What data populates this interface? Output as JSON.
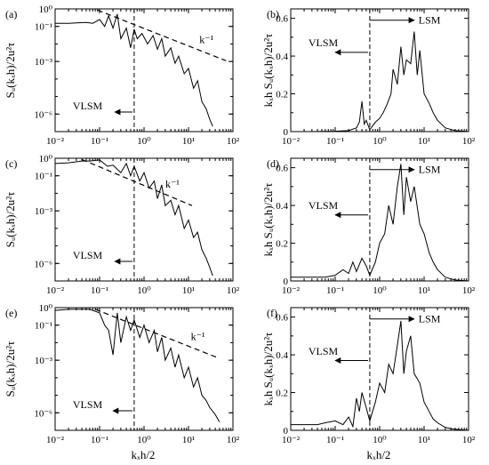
{
  "figure": {
    "xlabel": "kₓh/2"
  },
  "chart_data": [
    {
      "panel": "(a)",
      "type": "line",
      "xscale": "log",
      "yscale": "log",
      "xlim": [
        0.01,
        100
      ],
      "ylim": [
        1e-07,
        1
      ],
      "ylabel": "Sᵤ(kₓh)/2u²τ",
      "xticks": [
        "10⁻²",
        "10⁻¹",
        "10⁰",
        "10¹",
        "10²"
      ],
      "yticks": [
        "10⁰",
        "10⁻¹",
        "10⁻³",
        "10⁻⁶"
      ],
      "ytick_values": [
        1,
        0.1,
        0.001,
        1e-06
      ],
      "cutoff_x": 0.6,
      "reference_line": {
        "label": "k⁻¹",
        "x": [
          0.09,
          70
        ],
        "y": [
          0.85,
          0.0011
        ]
      },
      "annotations": [
        {
          "text": "VLSM",
          "x": 0.025,
          "y": 3e-06,
          "arrow_to_x": 0.22,
          "arrow_from_x": 0.55,
          "arrow_y": 1.3e-06
        }
      ],
      "series": [
        {
          "x": [
            0.01,
            0.02,
            0.03,
            0.05,
            0.07,
            0.1,
            0.13,
            0.16,
            0.2,
            0.25,
            0.3,
            0.4,
            0.5,
            0.6,
            0.7,
            0.9,
            1.2,
            1.6,
            2,
            2.5,
            3,
            4,
            5,
            6,
            8,
            10,
            13,
            16,
            20,
            25,
            30,
            35
          ],
          "y": [
            0.15,
            0.15,
            0.16,
            0.17,
            0.15,
            0.25,
            0.1,
            0.4,
            0.08,
            0.5,
            0.02,
            0.08,
            0.006,
            0.07,
            0.02,
            0.04,
            0.01,
            0.03,
            0.005,
            0.02,
            0.002,
            0.006,
            0.0008,
            0.002,
            0.0002,
            0.0004,
            3e-05,
            8e-05,
            5e-06,
            2e-06,
            5e-07,
            2e-07
          ]
        }
      ]
    },
    {
      "panel": "(b)",
      "type": "line",
      "xscale": "log",
      "yscale": "linear",
      "xlim": [
        0.01,
        100
      ],
      "ylim": [
        0,
        0.65
      ],
      "ylabel": "kₓh Sᵤ(kₓh)/2u²τ",
      "xticks": [
        "10⁻²",
        "10⁻¹",
        "10⁰",
        "10¹",
        "10²"
      ],
      "yticks": [
        "0",
        "0.2",
        "0.4",
        "0.6"
      ],
      "ytick_values": [
        0,
        0.2,
        0.4,
        0.6
      ],
      "cutoff_x": 0.6,
      "annotations": [
        {
          "text": "LSM",
          "x": 7.5,
          "y": 0.59,
          "arrow_from_x": 0.6,
          "arrow_to_x": 6.0,
          "arrow_y": 0.59
        },
        {
          "text": "VLSM",
          "x": 0.025,
          "y": 0.47,
          "arrow_from_x": 0.55,
          "arrow_to_x": 0.1,
          "arrow_y": 0.42
        }
      ],
      "series": [
        {
          "x": [
            0.01,
            0.03,
            0.06,
            0.1,
            0.2,
            0.3,
            0.35,
            0.4,
            0.45,
            0.5,
            0.6,
            0.8,
            1,
            1.2,
            1.5,
            1.8,
            2,
            2.5,
            3,
            3.5,
            4,
            5,
            6,
            7,
            8,
            10,
            13,
            16,
            20,
            30,
            50,
            100
          ],
          "y": [
            0.0,
            0.0,
            0.001,
            0.002,
            0.005,
            0.02,
            0.05,
            0.16,
            0.04,
            0.06,
            0.01,
            0.05,
            0.07,
            0.1,
            0.15,
            0.2,
            0.33,
            0.25,
            0.45,
            0.3,
            0.38,
            0.36,
            0.53,
            0.3,
            0.43,
            0.2,
            0.15,
            0.1,
            0.06,
            0.02,
            0.005,
            0.0
          ]
        }
      ]
    },
    {
      "panel": "(c)",
      "type": "line",
      "xscale": "log",
      "yscale": "log",
      "xlim": [
        0.01,
        100
      ],
      "ylim": [
        1e-07,
        1
      ],
      "ylabel": "Sᵤ(kₓh)/2u²τ",
      "xticks": [
        "10⁻²",
        "10⁻¹",
        "10⁰",
        "10¹",
        "10²"
      ],
      "yticks": [
        "10⁰",
        "10⁻¹",
        "10⁻³",
        "10⁻⁶"
      ],
      "ytick_values": [
        1,
        0.1,
        0.001,
        1e-06
      ],
      "cutoff_x": 0.6,
      "reference_line": {
        "label": "k⁻¹",
        "x": [
          0.04,
          12
        ],
        "y": [
          0.85,
          0.002
        ]
      },
      "annotations": [
        {
          "text": "VLSM",
          "x": 0.025,
          "y": 3e-06,
          "arrow_to_x": 0.22,
          "arrow_from_x": 0.55,
          "arrow_y": 1.3e-06
        }
      ],
      "series": [
        {
          "x": [
            0.01,
            0.02,
            0.04,
            0.06,
            0.1,
            0.15,
            0.2,
            0.3,
            0.4,
            0.5,
            0.6,
            0.8,
            1,
            1.3,
            1.7,
            2,
            2.5,
            3,
            4,
            5,
            6,
            8,
            10,
            13,
            16,
            20,
            25,
            30,
            35
          ],
          "y": [
            0.5,
            0.55,
            0.7,
            0.7,
            0.8,
            0.35,
            0.4,
            0.15,
            0.5,
            0.1,
            0.35,
            0.05,
            0.15,
            0.02,
            0.05,
            0.005,
            0.03,
            0.002,
            0.004,
            0.0006,
            0.002,
            0.0001,
            0.0003,
            3e-05,
            6e-05,
            6e-06,
            2e-06,
            6e-07,
            2e-07
          ]
        }
      ]
    },
    {
      "panel": "(d)",
      "type": "line",
      "xscale": "log",
      "yscale": "linear",
      "xlim": [
        0.01,
        100
      ],
      "ylim": [
        0,
        0.65
      ],
      "ylabel": "kₓh Sᵤ(kₓh)/2u²τ",
      "xticks": [
        "10⁻²",
        "10⁻¹",
        "10⁰",
        "10¹",
        "10²"
      ],
      "yticks": [
        "0",
        "0.2",
        "0.4",
        "0.6"
      ],
      "ytick_values": [
        0,
        0.2,
        0.4,
        0.6
      ],
      "cutoff_x": 0.6,
      "annotations": [
        {
          "text": "LSM",
          "x": 7.5,
          "y": 0.59,
          "arrow_from_x": 0.6,
          "arrow_to_x": 6.0,
          "arrow_y": 0.59
        },
        {
          "text": "VLSM",
          "x": 0.025,
          "y": 0.4,
          "arrow_from_x": 0.55,
          "arrow_to_x": 0.1,
          "arrow_y": 0.35
        }
      ],
      "series": [
        {
          "x": [
            0.01,
            0.02,
            0.04,
            0.06,
            0.1,
            0.15,
            0.2,
            0.25,
            0.3,
            0.4,
            0.5,
            0.6,
            0.8,
            1,
            1.3,
            1.6,
            2,
            2.5,
            3,
            3.5,
            4,
            5,
            6,
            8,
            10,
            13,
            16,
            20,
            30,
            50,
            100
          ],
          "y": [
            0.02,
            0.02,
            0.02,
            0.02,
            0.03,
            0.06,
            0.04,
            0.1,
            0.05,
            0.12,
            0.08,
            0.03,
            0.1,
            0.2,
            0.25,
            0.4,
            0.3,
            0.5,
            0.62,
            0.35,
            0.55,
            0.42,
            0.5,
            0.3,
            0.25,
            0.15,
            0.1,
            0.06,
            0.02,
            0.005,
            0.0
          ]
        }
      ]
    },
    {
      "panel": "(e)",
      "type": "line",
      "xscale": "log",
      "yscale": "log",
      "xlim": [
        0.01,
        100
      ],
      "ylim": [
        1e-07,
        1
      ],
      "ylabel": "Sᵤ(kₓh)/2u²τ",
      "xticks": [
        "10⁻²",
        "10⁻¹",
        "10⁰",
        "10¹",
        "10²"
      ],
      "yticks": [
        "10⁰",
        "10⁻¹",
        "10⁻³",
        "10⁻⁶"
      ],
      "ytick_values": [
        1,
        0.1,
        0.001,
        1e-06
      ],
      "cutoff_x": 0.6,
      "reference_line": {
        "label": "k⁻¹",
        "x": [
          0.08,
          45
        ],
        "y": [
          0.8,
          0.0014
        ]
      },
      "annotations": [
        {
          "text": "VLSM",
          "x": 0.025,
          "y": 3e-06,
          "arrow_to_x": 0.2,
          "arrow_from_x": 0.55,
          "arrow_y": 1.3e-06
        }
      ],
      "series": [
        {
          "x": [
            0.01,
            0.02,
            0.04,
            0.06,
            0.1,
            0.13,
            0.16,
            0.2,
            0.25,
            0.3,
            0.4,
            0.5,
            0.6,
            0.8,
            1,
            1.3,
            1.7,
            2,
            2.5,
            3,
            4,
            5,
            6,
            8,
            10,
            13,
            16,
            20,
            25,
            30,
            40,
            50
          ],
          "y": [
            0.7,
            0.8,
            0.8,
            0.8,
            0.5,
            0.1,
            0.05,
            0.002,
            0.5,
            0.01,
            0.3,
            0.05,
            0.2,
            0.02,
            0.1,
            0.01,
            0.05,
            0.003,
            0.02,
            0.001,
            0.005,
            0.0004,
            0.002,
            0.0001,
            0.0004,
            3e-05,
            0.0001,
            1e-05,
            5e-06,
            2e-06,
            8e-07,
            3e-07
          ]
        }
      ]
    },
    {
      "panel": "(f)",
      "type": "line",
      "xscale": "log",
      "yscale": "linear",
      "xlim": [
        0.01,
        100
      ],
      "ylim": [
        0,
        0.65
      ],
      "ylabel": "kₓh Sᵤ(kₓh)/2u²τ",
      "xticks": [
        "10⁻²",
        "10⁻¹",
        "10⁰",
        "10¹",
        "10²"
      ],
      "yticks": [
        "0",
        "0.2",
        "0.4",
        "0.6"
      ],
      "ytick_values": [
        0,
        0.2,
        0.4,
        0.6
      ],
      "cutoff_x": 0.6,
      "annotations": [
        {
          "text": "LSM",
          "x": 7.5,
          "y": 0.59,
          "arrow_from_x": 0.6,
          "arrow_to_x": 6.0,
          "arrow_y": 0.59
        },
        {
          "text": "VLSM",
          "x": 0.025,
          "y": 0.42,
          "arrow_from_x": 0.55,
          "arrow_to_x": 0.1,
          "arrow_y": 0.37
        }
      ],
      "series": [
        {
          "x": [
            0.01,
            0.02,
            0.04,
            0.06,
            0.1,
            0.15,
            0.2,
            0.25,
            0.3,
            0.35,
            0.4,
            0.5,
            0.6,
            0.8,
            1,
            1.3,
            1.6,
            2,
            2.5,
            3,
            3.5,
            4,
            5,
            6,
            8,
            10,
            13,
            16,
            20,
            30,
            50,
            100
          ],
          "y": [
            0.03,
            0.03,
            0.03,
            0.04,
            0.05,
            0.03,
            0.07,
            0.02,
            0.17,
            0.1,
            0.2,
            0.12,
            0.05,
            0.15,
            0.25,
            0.2,
            0.35,
            0.3,
            0.45,
            0.58,
            0.3,
            0.42,
            0.5,
            0.3,
            0.25,
            0.15,
            0.1,
            0.06,
            0.04,
            0.015,
            0.005,
            0.0
          ]
        }
      ]
    }
  ]
}
